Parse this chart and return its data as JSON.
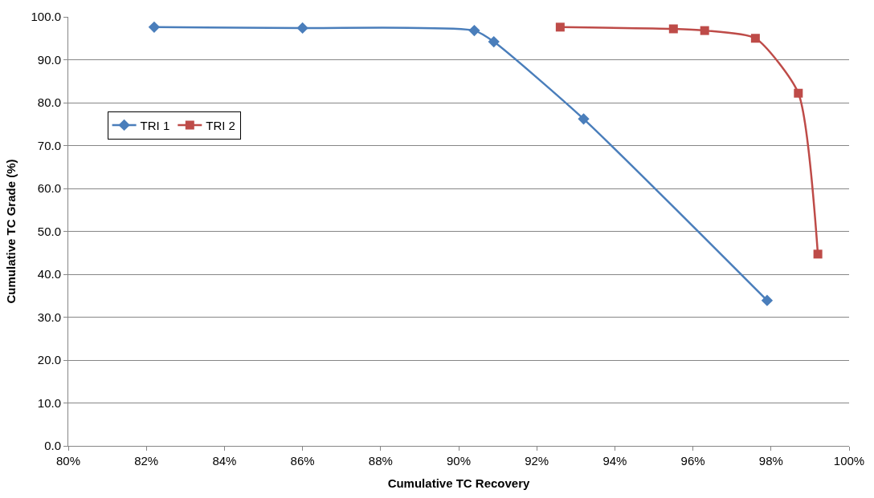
{
  "chart_data": {
    "type": "line",
    "xlabel": "Cumulative TC Recovery",
    "ylabel": "Cumulative TC Grade (%)",
    "xlim": [
      80,
      100
    ],
    "xticks": [
      {
        "value": 80,
        "label": "80%"
      },
      {
        "value": 82,
        "label": "82%"
      },
      {
        "value": 84,
        "label": "84%"
      },
      {
        "value": 86,
        "label": "86%"
      },
      {
        "value": 88,
        "label": "88%"
      },
      {
        "value": 90,
        "label": "90%"
      },
      {
        "value": 92,
        "label": "92%"
      },
      {
        "value": 94,
        "label": "94%"
      },
      {
        "value": 96,
        "label": "96%"
      },
      {
        "value": 98,
        "label": "98%"
      },
      {
        "value": 100,
        "label": "100%"
      }
    ],
    "ylim": [
      0,
      100
    ],
    "yticks": [
      {
        "value": 0,
        "label": "0.0"
      },
      {
        "value": 10,
        "label": "10.0"
      },
      {
        "value": 20,
        "label": "20.0"
      },
      {
        "value": 30,
        "label": "30.0"
      },
      {
        "value": 40,
        "label": "40.0"
      },
      {
        "value": 50,
        "label": "50.0"
      },
      {
        "value": 60,
        "label": "60.0"
      },
      {
        "value": 70,
        "label": "70.0"
      },
      {
        "value": 80,
        "label": "80.0"
      },
      {
        "value": 90,
        "label": "90.0"
      },
      {
        "value": 100,
        "label": "100.0"
      }
    ],
    "grid": "y",
    "legend": "top left",
    "series": [
      {
        "name": "TRI 1",
        "color": "#4a7ebb",
        "marker": "diamond",
        "x": [
          82.2,
          86.0,
          90.4,
          90.9,
          93.2,
          97.9
        ],
        "values": [
          97.6,
          97.4,
          96.8,
          94.2,
          76.2,
          33.9
        ]
      },
      {
        "name": "TRI 2",
        "color": "#be4b48",
        "marker": "square",
        "x": [
          92.6,
          95.5,
          96.3,
          97.6,
          98.7,
          99.2
        ],
        "values": [
          97.6,
          97.2,
          96.8,
          95.0,
          82.2,
          44.7
        ]
      }
    ]
  }
}
